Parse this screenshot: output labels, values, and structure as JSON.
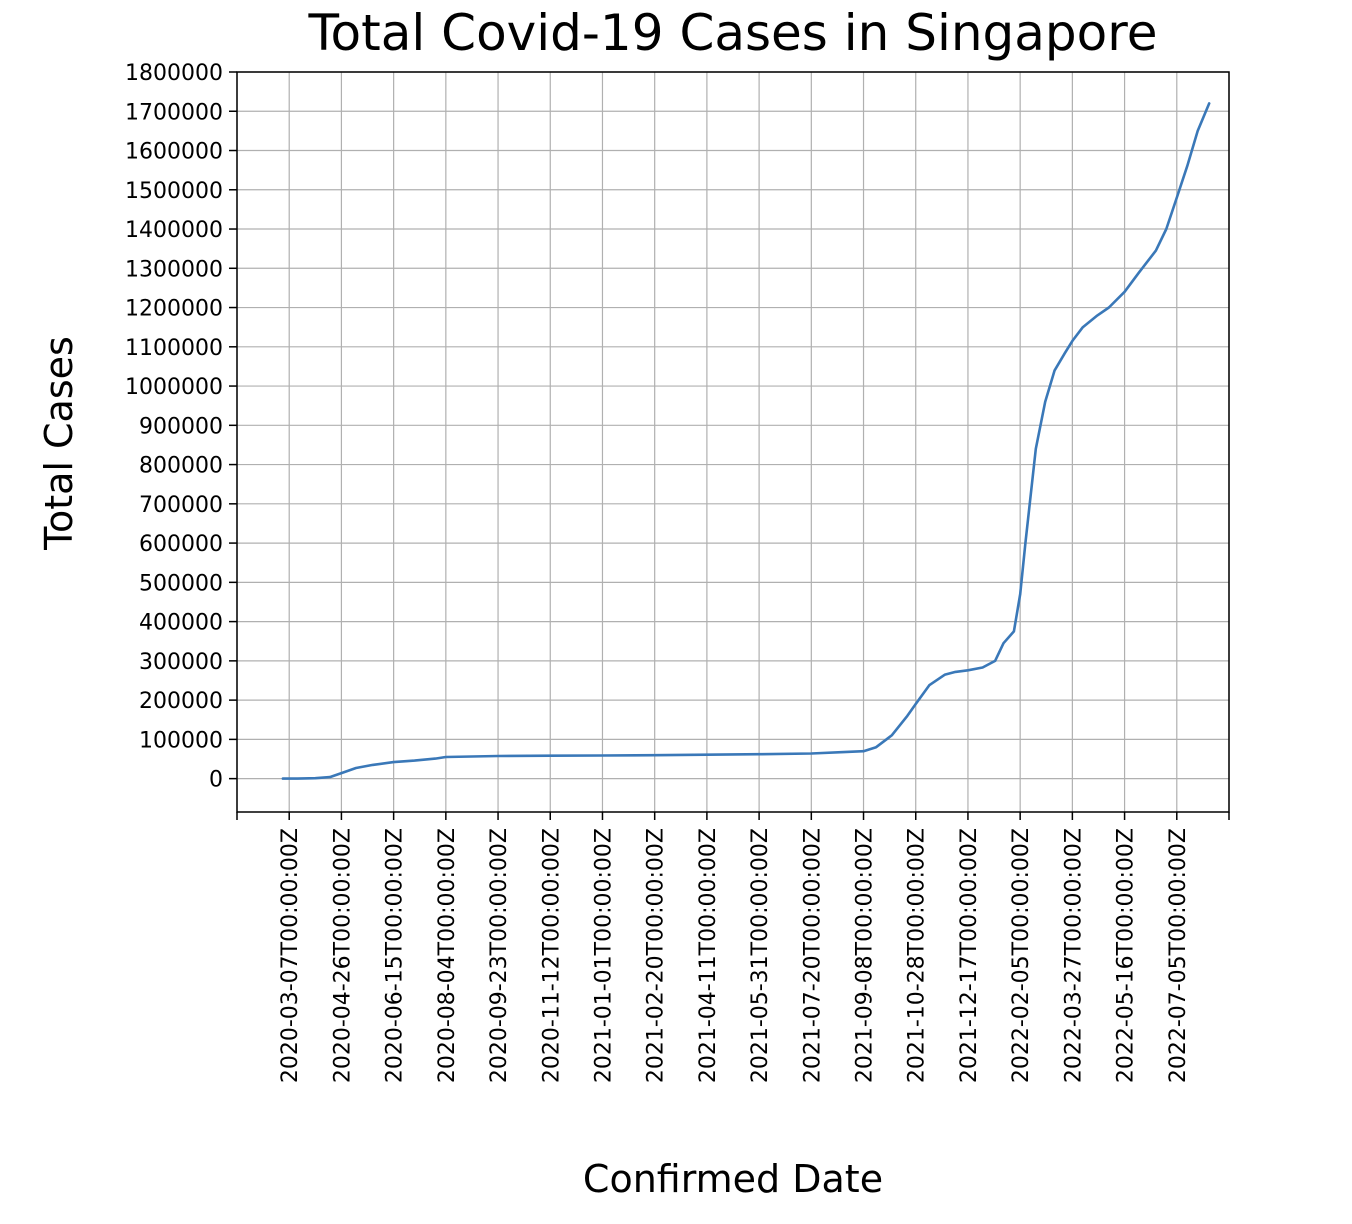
{
  "chart_data": {
    "type": "line",
    "title": "Total Covid-19 Cases in Singapore",
    "xlabel": "Confirmed Date",
    "ylabel": "Total Cases",
    "grid": true,
    "x_tick_labels": [
      "2020-03-07T00:00:00Z",
      "2020-04-26T00:00:00Z",
      "2020-06-15T00:00:00Z",
      "2020-08-04T00:00:00Z",
      "2020-09-23T00:00:00Z",
      "2020-11-12T00:00:00Z",
      "2021-01-01T00:00:00Z",
      "2021-02-20T00:00:00Z",
      "2021-04-11T00:00:00Z",
      "2021-05-31T00:00:00Z",
      "2021-07-20T00:00:00Z",
      "2021-09-08T00:00:00Z",
      "2021-10-28T00:00:00Z",
      "2021-12-17T00:00:00Z",
      "2022-02-05T00:00:00Z",
      "2022-03-27T00:00:00Z",
      "2022-05-16T00:00:00Z",
      "2022-07-05T00:00:00Z"
    ],
    "xlim": [
      "2020-01-17",
      "2022-08-24"
    ],
    "y_ticks": [
      0,
      100000,
      200000,
      300000,
      400000,
      500000,
      600000,
      700000,
      800000,
      900000,
      1000000,
      1100000,
      1200000,
      1300000,
      1400000,
      1500000,
      1600000,
      1700000,
      1800000
    ],
    "ylim": [
      -85000,
      1800000
    ],
    "series_color": "#3a78b8",
    "series": [
      {
        "x": [
          "2020-03-01",
          "2020-03-15",
          "2020-04-01",
          "2020-04-15",
          "2020-04-26",
          "2020-05-10",
          "2020-05-26",
          "2020-06-15",
          "2020-07-05",
          "2020-07-25",
          "2020-08-04",
          "2020-09-23",
          "2020-11-12",
          "2021-01-01",
          "2021-02-20",
          "2021-04-11",
          "2021-05-31",
          "2021-07-20",
          "2021-08-20",
          "2021-09-08",
          "2021-09-20",
          "2021-10-05",
          "2021-10-20",
          "2021-10-28",
          "2021-11-10",
          "2021-11-25",
          "2021-12-05",
          "2021-12-17",
          "2021-12-31",
          "2022-01-12",
          "2022-01-20",
          "2022-01-30",
          "2022-02-05",
          "2022-02-10",
          "2022-02-20",
          "2022-03-01",
          "2022-03-10",
          "2022-03-20",
          "2022-03-27",
          "2022-04-06",
          "2022-04-20",
          "2022-05-01",
          "2022-05-16",
          "2022-05-30",
          "2022-06-15",
          "2022-06-25",
          "2022-07-05",
          "2022-07-15",
          "2022-07-25",
          "2022-08-05"
        ],
        "y": [
          150,
          200,
          1000,
          4000,
          14000,
          27000,
          35000,
          42000,
          46000,
          51000,
          55000,
          57700,
          58300,
          58900,
          59800,
          61000,
          62200,
          64000,
          67500,
          70000,
          80000,
          110000,
          160000,
          190000,
          238000,
          265000,
          272000,
          276000,
          283000,
          300000,
          345000,
          375000,
          470000,
          600000,
          840000,
          960000,
          1040000,
          1085000,
          1115000,
          1150000,
          1180000,
          1200000,
          1240000,
          1290000,
          1345000,
          1400000,
          1480000,
          1560000,
          1650000,
          1720000
        ]
      }
    ]
  }
}
